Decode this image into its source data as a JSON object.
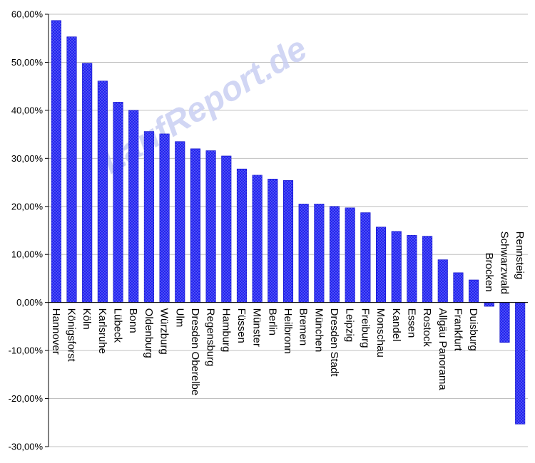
{
  "watermark": "LaufReport.de",
  "colors": {
    "bar": "#2222ee",
    "bar_dots": "#8d96ff",
    "bar_stroke": "#1010c8",
    "grid": "#c0c0c0",
    "axis": "#000000"
  },
  "chart_data": {
    "type": "bar",
    "title": "",
    "xlabel": "",
    "ylabel": "",
    "ylim": [
      -30,
      60
    ],
    "ytick_step": 10,
    "ytick_format": "percent_2dec_comma",
    "grid": true,
    "legend": "none",
    "categories": [
      "Hannover",
      "Königsforst",
      "Köln",
      "Karlsruhe",
      "Lübeck",
      "Bonn",
      "Oldenburg",
      "Würzburg",
      "Ulm",
      "Dresden Oberelbe",
      "Regensburg",
      "Hamburg",
      "Füssen",
      "Münster",
      "Berlin",
      "Heilbronn",
      "Bremen",
      "München",
      "Dresden Stadt",
      "Leipzig",
      "Freiburg",
      "Monschau",
      "Kandel",
      "Essen",
      "Rostock",
      "Allgäu Panorama",
      "Frankfurt",
      "Duisburg",
      "Brocken",
      "Schwarzwald",
      "Rennsteig"
    ],
    "values": [
      58.7,
      55.3,
      49.8,
      46.1,
      41.7,
      40.0,
      35.6,
      35.1,
      33.5,
      32.0,
      31.6,
      30.5,
      27.8,
      26.5,
      25.7,
      25.4,
      20.5,
      20.5,
      20.0,
      19.7,
      18.7,
      15.7,
      14.8,
      14.0,
      13.8,
      8.9,
      6.2,
      4.7,
      -0.8,
      -8.3,
      -25.3
    ]
  }
}
